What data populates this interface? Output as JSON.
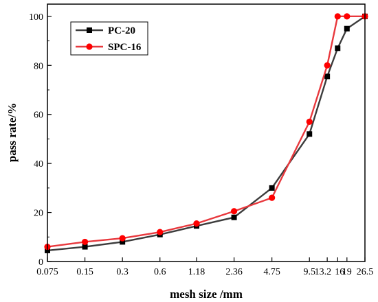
{
  "chart_data": {
    "type": "line",
    "title": "",
    "xlabel": "mesh size /mm",
    "ylabel": "pass rate/%",
    "categories": [
      "0.075",
      "0.15",
      "0.3",
      "0.6",
      "1.18",
      "2.36",
      "4.75",
      "9.5",
      "13.2",
      "16",
      "19",
      "26.5"
    ],
    "ylim": [
      0,
      105
    ],
    "yticks": [
      0,
      20,
      40,
      60,
      80,
      100
    ],
    "grid": false,
    "legend_position": "top-left",
    "series": [
      {
        "name": "PC-20",
        "marker": "square",
        "line_color": "#3c3c3c",
        "marker_color": "#000000",
        "values": [
          4.5,
          6,
          8,
          11,
          14.5,
          18,
          30,
          52,
          75.5,
          87,
          95,
          100
        ]
      },
      {
        "name": "SPC-16",
        "marker": "circle",
        "line_color": "#e8383d",
        "marker_color": "#ff0000",
        "values": [
          6,
          8,
          9.5,
          12,
          15.5,
          20.5,
          26,
          57,
          80,
          100,
          100,
          100
        ]
      }
    ]
  }
}
